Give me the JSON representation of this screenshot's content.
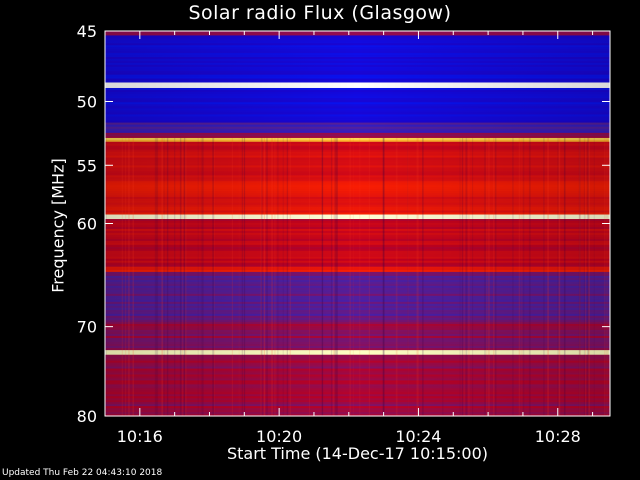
{
  "chart_data": {
    "type": "heatmap",
    "title": "Solar radio Flux (Glasgow)",
    "xlabel": "Start Time (14-Dec-17 10:15:00)",
    "ylabel": "Frequency [MHz]",
    "x_tick_labels": [
      "10:16",
      "10:20",
      "10:24",
      "10:28"
    ],
    "x_tick_minutes": [
      1,
      5,
      9,
      13
    ],
    "xlim_minutes": [
      0,
      14.5
    ],
    "y_ticks": [
      45,
      50,
      55,
      60,
      70,
      80
    ],
    "ylim": [
      45,
      80
    ],
    "y_scale": "log",
    "grid": false,
    "colormap": [
      "#000000",
      "#2000c8",
      "#0018ff",
      "#5020a0",
      "#c00020",
      "#ff2000",
      "#ff9000",
      "#ffff80",
      "#ffffff"
    ],
    "bands": [
      {
        "f0": 45.0,
        "f1": 45.3,
        "level": 0.45
      },
      {
        "f0": 45.3,
        "f1": 48.6,
        "level": 0.18
      },
      {
        "f0": 48.6,
        "f1": 49.0,
        "level": 1.0
      },
      {
        "f0": 49.0,
        "f1": 51.6,
        "level": 0.18
      },
      {
        "f0": 51.6,
        "f1": 52.4,
        "level": 0.35
      },
      {
        "f0": 52.4,
        "f1": 52.8,
        "level": 0.45
      },
      {
        "f0": 52.8,
        "f1": 53.1,
        "level": 0.82
      },
      {
        "f0": 53.1,
        "f1": 56.0,
        "level": 0.55
      },
      {
        "f0": 56.0,
        "f1": 59.2,
        "level": 0.58
      },
      {
        "f0": 59.2,
        "f1": 59.6,
        "level": 0.92
      },
      {
        "f0": 59.6,
        "f1": 64.0,
        "level": 0.52
      },
      {
        "f0": 64.0,
        "f1": 64.5,
        "level": 0.62
      },
      {
        "f0": 64.5,
        "f1": 69.5,
        "level": 0.4
      },
      {
        "f0": 69.5,
        "f1": 72.5,
        "level": 0.45
      },
      {
        "f0": 72.5,
        "f1": 73.0,
        "level": 0.9
      },
      {
        "f0": 73.0,
        "f1": 80.0,
        "level": 0.46
      }
    ]
  },
  "footer": "Updated Thu Feb 22 04:43:10 2018"
}
